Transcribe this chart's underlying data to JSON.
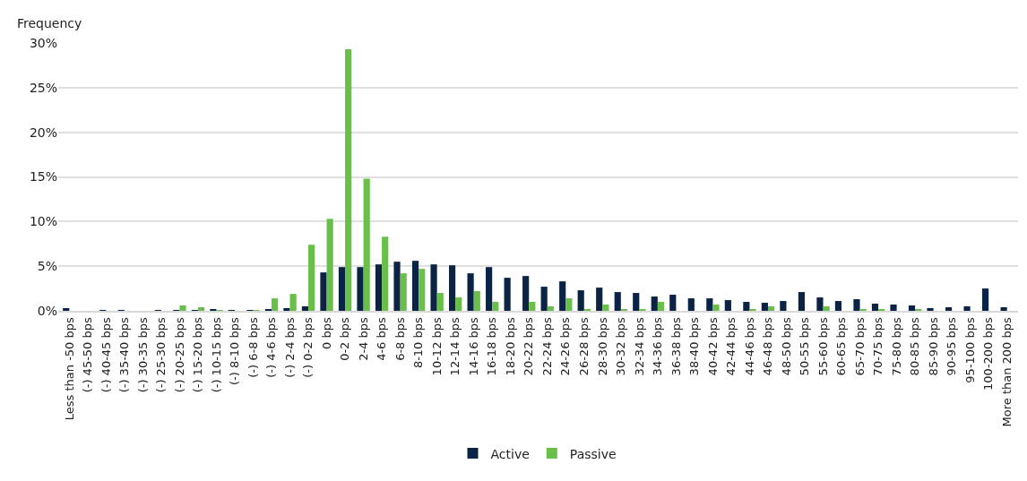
{
  "chart_data": {
    "type": "bar",
    "ylabel": "Frequency",
    "categories": [
      "Less than -50 bps",
      "(-) 45-50 bps",
      "(-) 40-45 bps",
      "(-) 35-40 bps",
      "(-) 30-35 bps",
      "(-) 25-30 bps",
      "(-) 20-25 bps",
      "(-) 15-20 bps",
      "(-) 10-15 bps",
      "(-) 8-10 bps",
      "(-) 6-8 bps",
      "(-) 4-6 bps",
      "(-) 2-4 bps",
      "(-) 0-2 bps",
      "0 bps",
      "0-2 bps",
      "2-4 bps",
      "4-6 bps",
      "6-8 bps",
      "8-10 bps",
      "10-12 bps",
      "12-14 bps",
      "14-16 bps",
      "16-18 bps",
      "18-20 bps",
      "20-22 bps",
      "22-24 bps",
      "24-26 bps",
      "26-28 bps",
      "28-30 bps",
      "30-32 bps",
      "32-34 bps",
      "34-36 bps",
      "36-38 bps",
      "38-40 bps",
      "40-42 bps",
      "42-44 bps",
      "44-46 bps",
      "46-48 bps",
      "48-50 bps",
      "50-55 bps",
      "55-60 bps",
      "60-65 bps",
      "65-70 bps",
      "70-75 bps",
      "75-80 bps",
      "80-85 bps",
      "85-90 bps",
      "90-95 bps",
      "95-100 bps",
      "100-200 bps",
      "More than 200 bps"
    ],
    "series": [
      {
        "name": "Active",
        "color": "#0b2345",
        "values": [
          0.3,
          0,
          0.1,
          0.1,
          0,
          0.1,
          0.1,
          0.1,
          0.2,
          0.1,
          0.1,
          0.2,
          0.3,
          0.5,
          4.3,
          4.9,
          4.9,
          5.2,
          5.5,
          5.6,
          5.2,
          5.1,
          4.2,
          4.9,
          3.7,
          3.9,
          2.7,
          3.3,
          2.3,
          2.6,
          2.1,
          2.0,
          1.6,
          1.8,
          1.4,
          1.4,
          1.2,
          1.0,
          0.9,
          1.1,
          2.1,
          1.5,
          1.1,
          1.3,
          0.8,
          0.7,
          0.6,
          0.3,
          0.4,
          0.5,
          2.5,
          0.4
        ]
      },
      {
        "name": "Passive",
        "color": "#6abf4b",
        "values": [
          0,
          0,
          0,
          0,
          0,
          0,
          0.6,
          0.4,
          0.1,
          0,
          0.1,
          1.4,
          1.9,
          7.4,
          10.3,
          29.3,
          14.8,
          8.3,
          4.2,
          4.7,
          2.0,
          1.5,
          2.2,
          1.0,
          0,
          1.0,
          0.5,
          1.4,
          0.2,
          0.7,
          0.2,
          0.2,
          1.0,
          0,
          0,
          0.7,
          0,
          0.2,
          0.5,
          0,
          0,
          0.5,
          0,
          0.2,
          0.2,
          0,
          0.2,
          0,
          0,
          0,
          0,
          0
        ]
      }
    ],
    "ylim": [
      0,
      30
    ],
    "yticks": [
      {
        "value": 0,
        "label": "0%"
      },
      {
        "value": 5,
        "label": "5%"
      },
      {
        "value": 10,
        "label": "10%"
      },
      {
        "value": 15,
        "label": "15%"
      },
      {
        "value": 20,
        "label": "20%"
      },
      {
        "value": 25,
        "label": "25%"
      },
      {
        "value": 30,
        "label": "30%"
      }
    ],
    "grid": "y",
    "legend": "bottom"
  }
}
